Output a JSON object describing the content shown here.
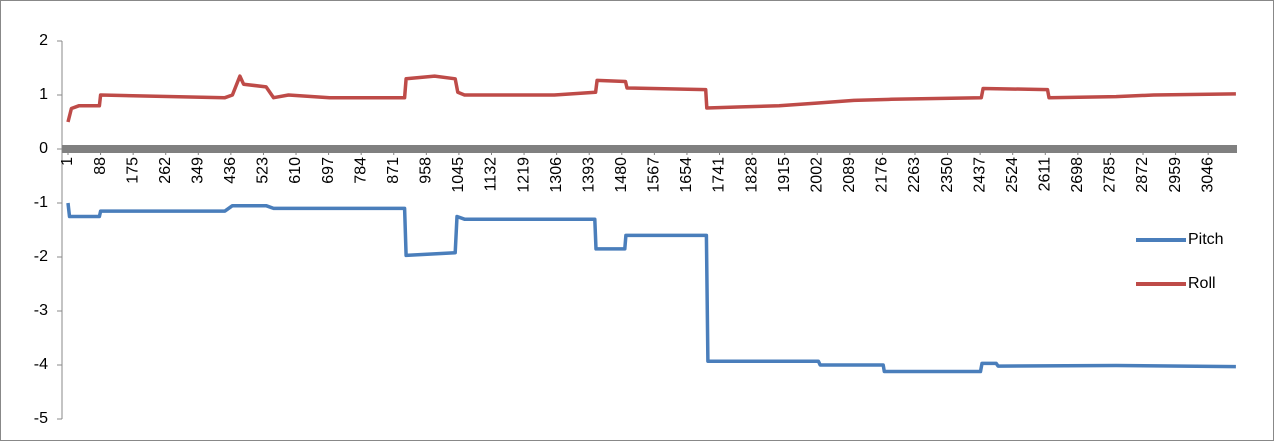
{
  "chart_data": {
    "type": "line",
    "xticks": [
      1,
      88,
      175,
      262,
      349,
      436,
      523,
      610,
      697,
      784,
      871,
      958,
      1045,
      1132,
      1219,
      1306,
      1393,
      1480,
      1567,
      1654,
      1741,
      1828,
      1915,
      2002,
      2089,
      2176,
      2263,
      2350,
      2437,
      2524,
      2611,
      2698,
      2785,
      2872,
      2959,
      3046
    ],
    "xlim": [
      -15,
      3123
    ],
    "ylim": [
      -5,
      2
    ],
    "yticks": [
      -5,
      -4,
      -3,
      -2,
      -1,
      0,
      1,
      2
    ],
    "grid": false,
    "legend": "right",
    "series": [
      {
        "name": "Pitch",
        "color": "#4a7ebb",
        "x": [
          1,
          5,
          85,
          88,
          420,
          440,
          470,
          530,
          550,
          900,
          904,
          1035,
          1040,
          1060,
          1408,
          1411,
          1488,
          1491,
          1706,
          1710,
          2005,
          2010,
          2178,
          2181,
          2438,
          2442,
          2480,
          2485,
          2800,
          3120
        ],
        "values": [
          -1.0,
          -1.25,
          -1.25,
          -1.15,
          -1.15,
          -1.05,
          -1.05,
          -1.05,
          -1.1,
          -1.1,
          -1.97,
          -1.92,
          -1.25,
          -1.3,
          -1.3,
          -1.85,
          -1.85,
          -1.6,
          -1.6,
          -3.93,
          -3.93,
          -4.0,
          -4.0,
          -4.12,
          -4.12,
          -3.97,
          -3.97,
          -4.02,
          -4.01,
          -4.03
        ]
      },
      {
        "name": "Roll",
        "color": "#be4b48",
        "x": [
          1,
          10,
          30,
          85,
          88,
          420,
          440,
          460,
          470,
          530,
          550,
          590,
          700,
          900,
          904,
          980,
          1035,
          1042,
          1060,
          1300,
          1410,
          1414,
          1490,
          1494,
          1704,
          1707,
          1800,
          1900,
          2000,
          2100,
          2200,
          2440,
          2445,
          2617,
          2621,
          2800,
          2900,
          3120
        ],
        "values": [
          0.5,
          0.75,
          0.8,
          0.8,
          1.0,
          0.95,
          1.0,
          1.35,
          1.2,
          1.15,
          0.95,
          1.0,
          0.95,
          0.95,
          1.3,
          1.35,
          1.3,
          1.05,
          1.0,
          1.0,
          1.05,
          1.27,
          1.25,
          1.13,
          1.1,
          0.76,
          0.78,
          0.8,
          0.85,
          0.9,
          0.92,
          0.95,
          1.12,
          1.1,
          0.95,
          0.97,
          1.0,
          1.02
        ]
      }
    ]
  }
}
